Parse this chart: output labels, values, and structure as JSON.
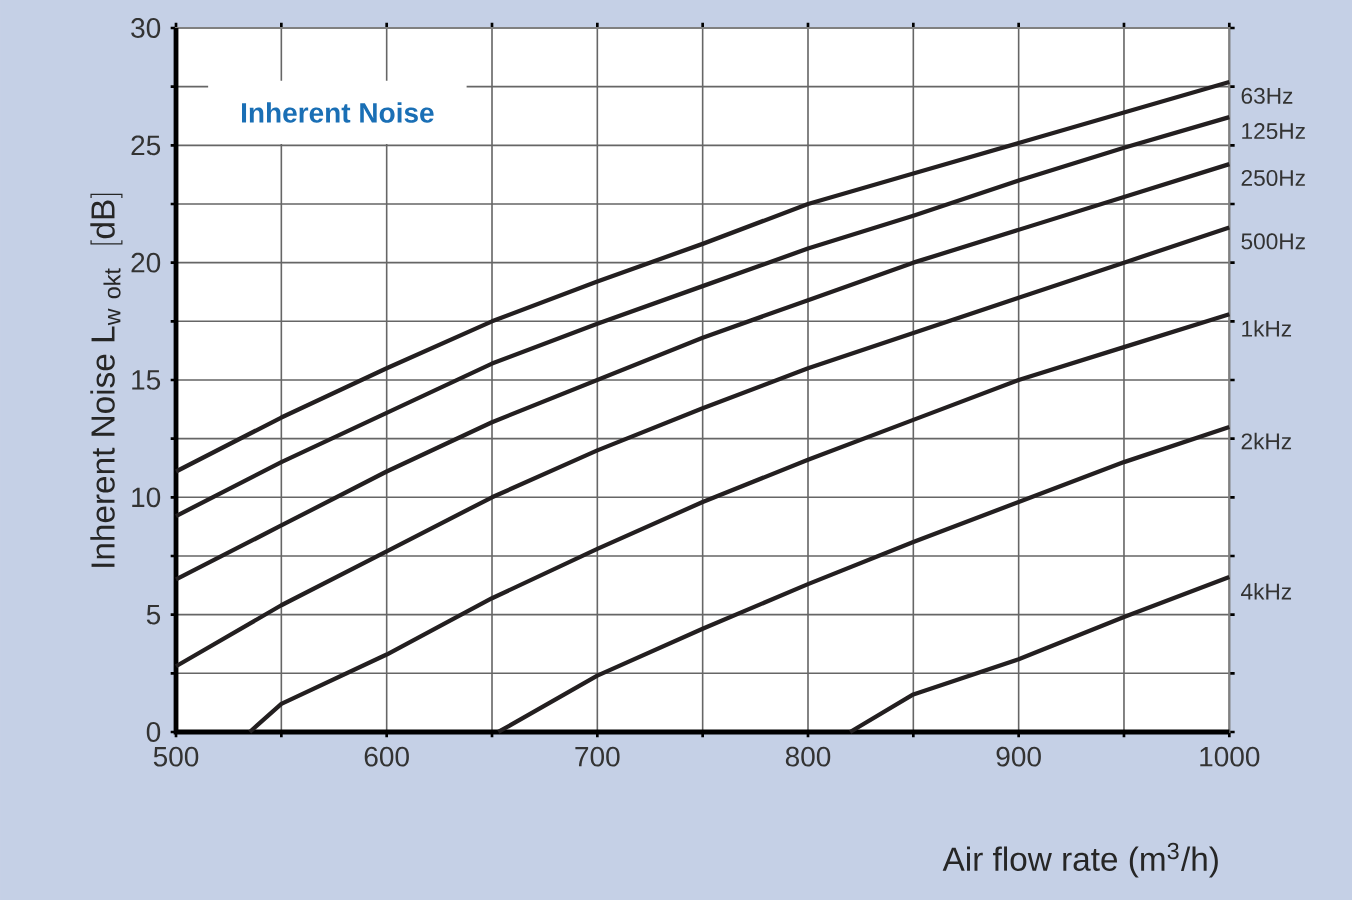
{
  "chart_data": {
    "type": "line",
    "xlabel": "Air flow rate (m$^{3}$/h)",
    "ylabel": "\\mathrm{Inherent\\ Noise\\ L_{w\\ okt}\\ \\ [dB]}",
    "annotations": [
      "Inherent Noise"
    ],
    "xlim": [
      500,
      1000
    ],
    "ylim": [
      0,
      30
    ],
    "xticks": [
      500,
      {
        "value": 550,
        "label": null
      },
      600,
      {
        "value": 650,
        "label": null
      },
      700,
      {
        "value": 750,
        "label": null
      },
      800,
      {
        "value": 850,
        "label": null
      },
      900,
      {
        "value": 950,
        "label": null
      },
      1000
    ],
    "yticks": [
      0,
      {
        "value": 2.5,
        "label": null
      },
      5,
      {
        "value": 7.5,
        "label": null
      },
      10,
      {
        "value": 12.5,
        "label": null
      },
      15,
      {
        "value": 17.5,
        "label": null
      },
      20,
      {
        "value": 22.5,
        "label": null
      },
      25,
      {
        "value": 27.5,
        "label": null
      },
      30
    ],
    "grid": true,
    "series": [
      {
        "name": "63Hz",
        "color": "#231f20",
        "x": [
          500,
          550,
          600,
          650,
          700,
          750,
          800,
          850,
          900,
          950,
          1000
        ],
        "values": [
          11.1,
          13.4,
          15.5,
          17.5,
          19.2,
          20.8,
          22.5,
          23.8,
          25.1,
          26.4,
          27.7
        ]
      },
      {
        "name": "125Hz",
        "color": "#231f20",
        "x": [
          500,
          550,
          600,
          650,
          700,
          750,
          800,
          850,
          900,
          950,
          1000
        ],
        "values": [
          9.2,
          11.5,
          13.6,
          15.7,
          17.4,
          19.0,
          20.6,
          22.0,
          23.5,
          24.9,
          26.2
        ]
      },
      {
        "name": "250Hz",
        "color": "#231f20",
        "x": [
          500,
          550,
          600,
          650,
          700,
          750,
          800,
          850,
          900,
          950,
          1000
        ],
        "values": [
          6.5,
          8.8,
          11.1,
          13.2,
          15.0,
          16.8,
          18.4,
          20.0,
          21.4,
          22.8,
          24.2
        ]
      },
      {
        "name": "500Hz",
        "color": "#231f20",
        "x": [
          500,
          550,
          600,
          650,
          700,
          750,
          800,
          850,
          900,
          950,
          1000
        ],
        "values": [
          2.8,
          5.4,
          7.7,
          10.0,
          12.0,
          13.8,
          15.5,
          17.0,
          18.5,
          20.0,
          21.5
        ]
      },
      {
        "name": "1kHz",
        "color": "#231f20",
        "x": [
          535,
          550,
          600,
          650,
          700,
          750,
          800,
          850,
          900,
          950,
          1000
        ],
        "values": [
          0,
          1.2,
          3.3,
          5.7,
          7.8,
          9.8,
          11.6,
          13.3,
          15.0,
          16.4,
          17.8
        ]
      },
      {
        "name": "2kHz",
        "color": "#231f20",
        "x": [
          653,
          700,
          750,
          800,
          850,
          900,
          950,
          1000
        ],
        "values": [
          0,
          2.4,
          4.4,
          6.3,
          8.1,
          9.8,
          11.5,
          13.0
        ]
      },
      {
        "name": "4kHz",
        "color": "#231f20",
        "x": [
          820,
          850,
          900,
          950,
          1000
        ],
        "values": [
          0,
          1.6,
          3.1,
          4.9,
          6.6
        ]
      }
    ]
  }
}
